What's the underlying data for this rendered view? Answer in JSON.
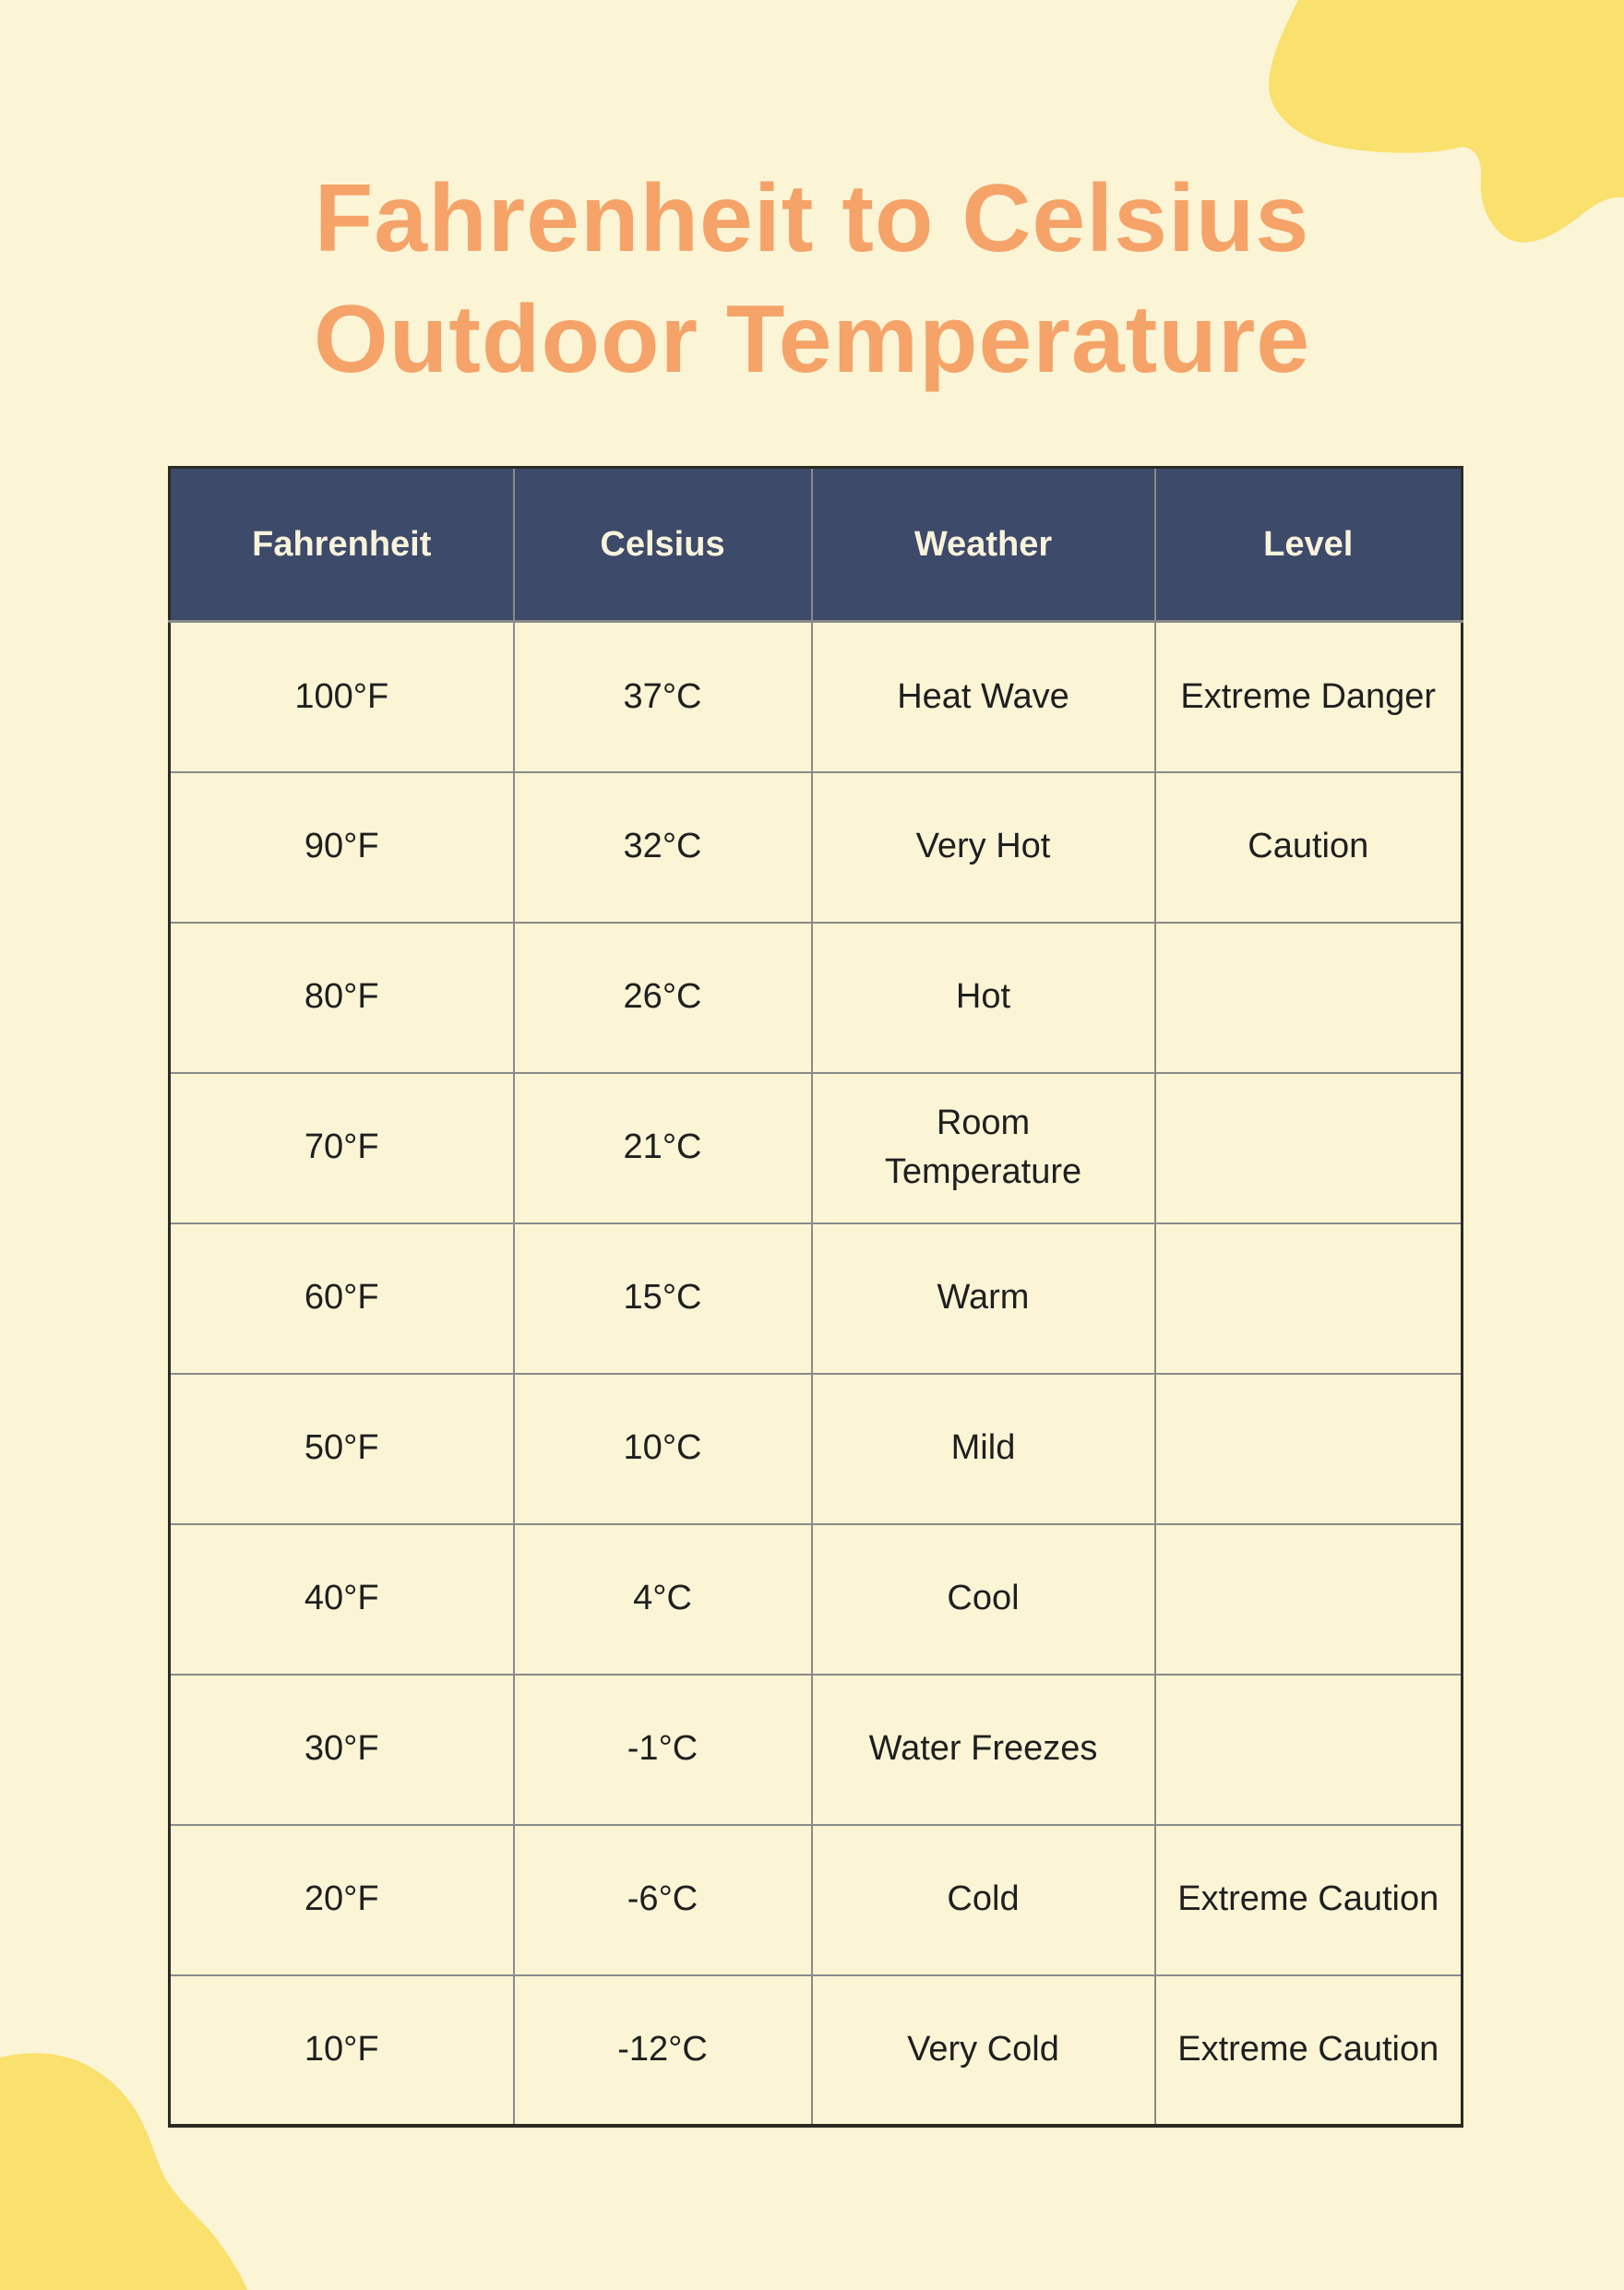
{
  "title": {
    "text": "Fahrenheit to Celsius Outdoor Temperature",
    "color": "#F5A369"
  },
  "colors": {
    "background": "#FBF5D6",
    "blob": "#FAE06C",
    "header_bg": "#3D4A69",
    "header_text": "#FAF3DC",
    "cell_text": "#1F1F1F",
    "grid_line": "#8A8A8A",
    "outer_border": "#2B2B24"
  },
  "chart_data": {
    "type": "table",
    "title": "Fahrenheit to Celsius Outdoor Temperature",
    "columns": [
      "Fahrenheit",
      "Celsius",
      "Weather",
      "Level"
    ],
    "rows": [
      [
        "100°F",
        "37°C",
        "Heat Wave",
        "Extreme Danger"
      ],
      [
        "90°F",
        "32°C",
        "Very Hot",
        "Caution"
      ],
      [
        "80°F",
        "26°C",
        "Hot",
        ""
      ],
      [
        "70°F",
        "21°C",
        "Room Temperature",
        ""
      ],
      [
        "60°F",
        "15°C",
        "Warm",
        ""
      ],
      [
        "50°F",
        "10°C",
        "Mild",
        ""
      ],
      [
        "40°F",
        "4°C",
        "Cool",
        ""
      ],
      [
        "30°F",
        "-1°C",
        "Water Freezes",
        ""
      ],
      [
        "20°F",
        "-6°C",
        "Cold",
        "Extreme Caution"
      ],
      [
        "10°F",
        "-12°C",
        "Very Cold",
        "Extreme Caution"
      ]
    ]
  }
}
